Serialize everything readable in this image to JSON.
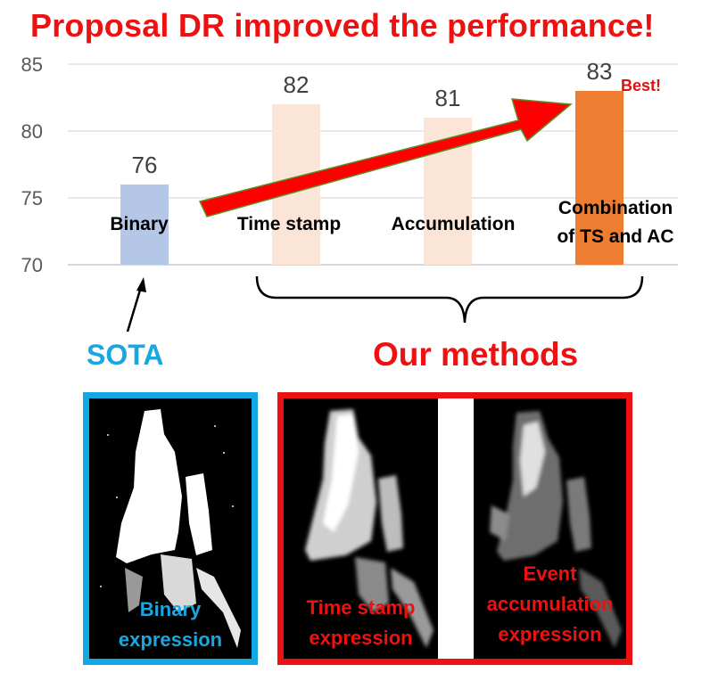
{
  "headline": "Proposal DR improved the performance!",
  "chart_data": {
    "type": "bar",
    "categories": [
      "Binary",
      "Time stamp",
      "Accumulation",
      "Combination of TS and AC"
    ],
    "category_lines": [
      [
        "Binary"
      ],
      [
        "Time stamp"
      ],
      [
        "Accumulation"
      ],
      [
        "Combination",
        "of TS and AC"
      ]
    ],
    "values": [
      76,
      82,
      81,
      83
    ],
    "data_labels": [
      "76",
      "82",
      "81",
      "83"
    ],
    "bar_colors": [
      "#b4c7e7",
      "#fbe5d6",
      "#fbe5d6",
      "#ed7d31"
    ],
    "ylim": [
      70,
      85
    ],
    "yticks": [
      70,
      75,
      80,
      85
    ],
    "grid": true,
    "annotation": "Best!"
  },
  "labels": {
    "sota": "SOTA",
    "our_methods": "Our methods"
  },
  "panels": {
    "binary_caption": [
      "Binary",
      "expression"
    ],
    "timestamp_caption": [
      "Time stamp",
      "expression"
    ],
    "accumulation_caption": [
      "Event",
      "accumulation",
      "expression"
    ]
  },
  "colors": {
    "title_red": "#ee1111",
    "sota_blue": "#1aa7e0",
    "arrow_red": "#ff0000",
    "best_bar": "#ed7d31"
  }
}
